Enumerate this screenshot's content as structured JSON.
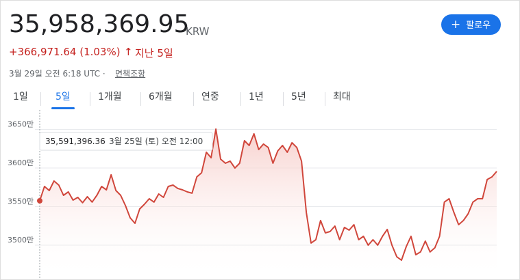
{
  "header": {
    "price": "35,958,369.95",
    "currency": "KRW",
    "change": "+366,971.64 (1.03%)",
    "period": "지난 5일",
    "timestamp": "3월 29일 오전 6:18 UTC · ",
    "disclaimer": "면책조항",
    "follow": "팔로우"
  },
  "tabs": [
    "1일",
    "5일",
    "1개월",
    "6개월",
    "연중",
    "1년",
    "5년",
    "최대"
  ],
  "selected_tab": 1,
  "tooltip": {
    "value": "35,591,396.36",
    "date": "3월 25일 (토) 오전 12:00"
  },
  "chart_data": {
    "type": "line",
    "color": "#d0463b",
    "ylim": [
      34584000,
      36752000
    ],
    "yticks": [
      {
        "value": 36500000,
        "label": "3650만"
      },
      {
        "value": 36000000,
        "label": "3600만"
      },
      {
        "value": 35500000,
        "label": "3550만"
      },
      {
        "value": 35000000,
        "label": "3500만"
      }
    ],
    "grid": true,
    "values": [
      35575000,
      35761000,
      35708000,
      35832000,
      35779000,
      35646000,
      35690000,
      35584000,
      35619000,
      35549000,
      35628000,
      35558000,
      35646000,
      35761000,
      35717000,
      35912000,
      35708000,
      35646000,
      35513000,
      35354000,
      35283000,
      35469000,
      35531000,
      35602000,
      35558000,
      35664000,
      35619000,
      35761000,
      35779000,
      35735000,
      35717000,
      35690000,
      35673000,
      35885000,
      35938000,
      36204000,
      36133000,
      36504000,
      36115000,
      36062000,
      36089000,
      36000000,
      36062000,
      36354000,
      36292000,
      36443000,
      36239000,
      36310000,
      36266000,
      36062000,
      36221000,
      36292000,
      36204000,
      36327000,
      36266000,
      36089000,
      35425000,
      35027000,
      35071000,
      35319000,
      35159000,
      35177000,
      35248000,
      35071000,
      35230000,
      35195000,
      35265000,
      35071000,
      35115000,
      35000000,
      35071000,
      35000000,
      35115000,
      35204000,
      35000000,
      34850000,
      34805000,
      34982000,
      35115000,
      34876000,
      34912000,
      35053000,
      34912000,
      34965000,
      35115000,
      35558000,
      35602000,
      35425000,
      35265000,
      35319000,
      35407000,
      35558000,
      35602000,
      35602000,
      35850000,
      35885000,
      35956000
    ]
  }
}
